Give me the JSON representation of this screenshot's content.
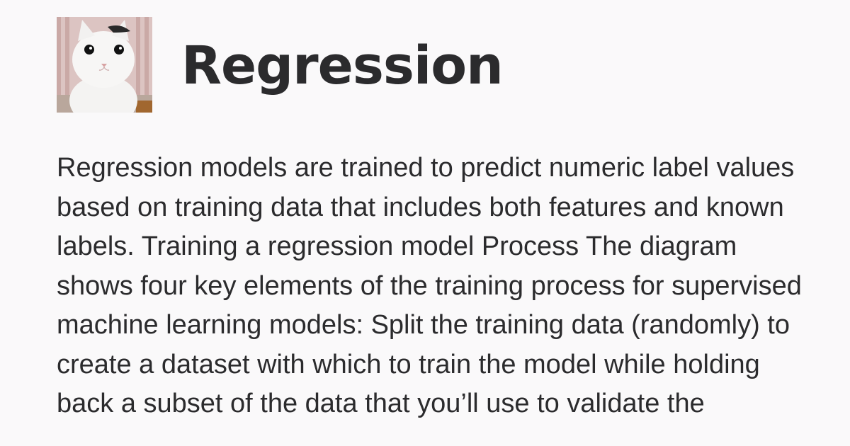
{
  "header": {
    "title": "Regression",
    "avatar_icon": "cat-avatar-icon"
  },
  "main": {
    "description": "Regression models are trained to predict numeric label values based on training data that includes both features and known labels. Training a regression model Process The diagram shows four key elements of the training process for supervised machine learning models: Split the training data (randomly) to create a dataset with which to train the model while holding back a subset of the data that you’ll use to validate the"
  },
  "colors": {
    "background": "#faf9fa",
    "text": "#2b2b2d"
  }
}
